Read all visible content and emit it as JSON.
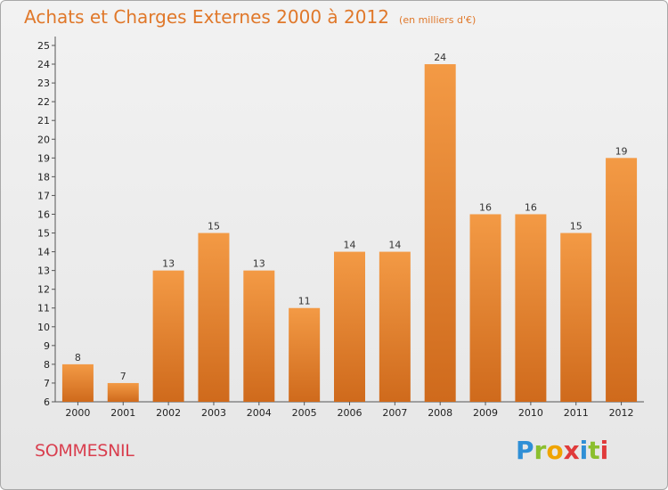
{
  "chart_data": {
    "type": "bar",
    "title": "Achats et Charges Externes 2000 à 2012",
    "subtitle": "(en milliers d'€)",
    "categories": [
      "2000",
      "2001",
      "2002",
      "2003",
      "2004",
      "2005",
      "2006",
      "2007",
      "2008",
      "2009",
      "2010",
      "2011",
      "2012"
    ],
    "values": [
      8,
      7,
      13,
      15,
      13,
      11,
      14,
      14,
      24,
      16,
      16,
      15,
      19
    ],
    "ylim": [
      6,
      25
    ],
    "yticks": [
      6,
      7,
      8,
      9,
      10,
      11,
      12,
      13,
      14,
      15,
      16,
      17,
      18,
      19,
      20,
      21,
      22,
      23,
      24,
      25
    ],
    "grid": false,
    "legend": "none",
    "bar_color": "#f39a45",
    "bar_dark": "#cf6a1c"
  },
  "footer": {
    "city": "SOMMESNIL",
    "logo_letters": [
      "P",
      "r",
      "o",
      "x",
      "i",
      "t",
      "i"
    ]
  }
}
